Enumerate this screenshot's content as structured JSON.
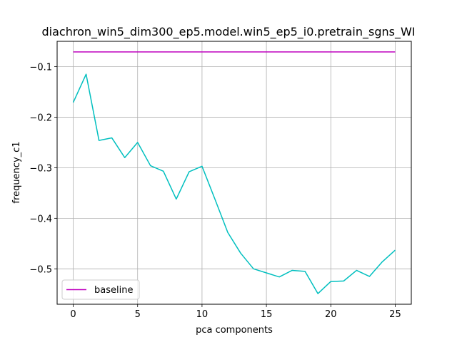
{
  "chart_data": {
    "type": "line",
    "title": "diachron_win5_dim300_ep5.model.win5_ep5_i0.pretrain_sgns_WI",
    "xlabel": "pca components",
    "ylabel": "frequency_c1",
    "xlim": [
      -1.25,
      26.25
    ],
    "ylim": [
      -0.57,
      -0.05
    ],
    "xticks": [
      0,
      5,
      10,
      15,
      20,
      25
    ],
    "yticks": [
      -0.5,
      -0.4,
      -0.3,
      -0.2,
      -0.1
    ],
    "xtick_labels": [
      "0",
      "5",
      "10",
      "15",
      "20",
      "25"
    ],
    "ytick_labels": [
      "−0.5",
      "−0.4",
      "−0.3",
      "−0.2",
      "−0.1"
    ],
    "grid": true,
    "legend_placement": "lower-left",
    "series": [
      {
        "name": "baseline",
        "color": "#bf00bf",
        "x": [
          0,
          25
        ],
        "values": [
          -0.071,
          -0.071
        ]
      },
      {
        "color": "#00bfbf",
        "x": [
          0,
          1,
          2,
          3,
          4,
          5,
          6,
          7,
          8,
          9,
          10,
          11,
          12,
          13,
          14,
          15,
          16,
          17,
          18,
          19,
          20,
          21,
          22,
          23,
          24,
          25
        ],
        "values": [
          -0.171,
          -0.115,
          -0.246,
          -0.241,
          -0.28,
          -0.25,
          -0.296,
          -0.307,
          -0.362,
          -0.308,
          -0.297,
          -0.362,
          -0.428,
          -0.469,
          -0.5,
          -0.508,
          -0.516,
          -0.503,
          -0.505,
          -0.549,
          -0.525,
          -0.524,
          -0.503,
          -0.515,
          -0.486,
          -0.463
        ]
      }
    ],
    "legend": [
      {
        "label": "baseline",
        "color": "#bf00bf"
      }
    ]
  }
}
